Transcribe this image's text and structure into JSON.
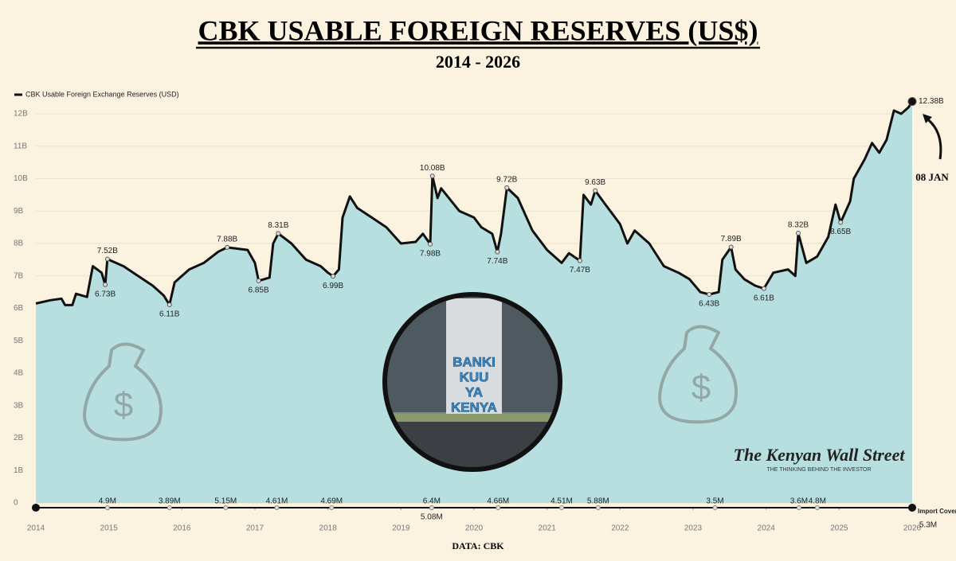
{
  "chart_data": {
    "type": "line",
    "title": "CBK USABLE FOREIGN RESERVES (US$)",
    "subtitle": "2014 - 2026",
    "source": "DATA: CBK",
    "annotation": "08 JAN",
    "watermark": "The Kenyan Wall Street",
    "watermark_tagline": "THE THINKING BEHIND THE INVESTOR",
    "image_text": [
      "BANKI",
      "KUU",
      "YA",
      "KENYA"
    ],
    "xlim": [
      2014,
      2026
    ],
    "xticks": [
      2014,
      2015,
      2016,
      2017,
      2018,
      2019,
      2020,
      2021,
      2022,
      2023,
      2024,
      2025,
      2026
    ],
    "ylim": [
      0,
      12.5
    ],
    "yticks": [
      0,
      {
        "value": 1,
        "label": "1B"
      },
      {
        "value": 2,
        "label": "2B"
      },
      {
        "value": 3,
        "label": "3B"
      },
      {
        "value": 4,
        "label": "4B"
      },
      {
        "value": 5,
        "label": "5B"
      },
      {
        "value": 6,
        "label": "6B"
      },
      {
        "value": 7,
        "label": "7B"
      },
      {
        "value": 8,
        "label": "8B"
      },
      {
        "value": 9,
        "label": "9B"
      },
      {
        "value": 10,
        "label": "10B"
      },
      {
        "value": 11,
        "label": "11B"
      },
      {
        "value": 12,
        "label": "12B"
      }
    ],
    "grid": true,
    "legend": "top-left",
    "series": [
      {
        "name": "CBK Usable Foreign Exchange Reserves (USD)",
        "color": "#111111",
        "fill": "#b8dfe0",
        "x": [
          2014.0,
          2014.2,
          2014.35,
          2014.4,
          2014.5,
          2014.55,
          2014.7,
          2014.78,
          2014.9,
          2014.95,
          2014.98,
          2015.2,
          2015.4,
          2015.6,
          2015.75,
          2015.83,
          2015.9,
          2016.0,
          2016.1,
          2016.3,
          2016.5,
          2016.62,
          2016.9,
          2017.0,
          2017.05,
          2017.2,
          2017.25,
          2017.32,
          2017.5,
          2017.7,
          2017.9,
          2018.0,
          2018.07,
          2018.15,
          2018.2,
          2018.3,
          2018.4,
          2018.6,
          2018.8,
          2019.0,
          2019.2,
          2019.3,
          2019.4,
          2019.43,
          2019.5,
          2019.55,
          2019.8,
          2020.0,
          2020.1,
          2020.25,
          2020.32,
          2020.37,
          2020.45,
          2020.6,
          2020.8,
          2021.0,
          2021.2,
          2021.3,
          2021.45,
          2021.5,
          2021.6,
          2021.66,
          2021.8,
          2022.0,
          2022.1,
          2022.2,
          2022.4,
          2022.6,
          2022.8,
          2022.95,
          2023.1,
          2023.22,
          2023.35,
          2023.4,
          2023.52,
          2023.58,
          2023.7,
          2023.85,
          2023.97,
          2024.1,
          2024.3,
          2024.4,
          2024.44,
          2024.55,
          2024.7,
          2024.85,
          2024.95,
          2025.02,
          2025.15,
          2025.2,
          2025.35,
          2025.45,
          2025.55,
          2025.65,
          2025.75,
          2025.85,
          2025.95,
          2026.0
        ],
        "values": [
          6.15,
          6.25,
          6.3,
          6.1,
          6.1,
          6.45,
          6.35,
          7.3,
          7.1,
          6.73,
          7.52,
          7.3,
          7.0,
          6.7,
          6.4,
          6.11,
          6.8,
          7.0,
          7.2,
          7.4,
          7.75,
          7.88,
          7.8,
          7.4,
          6.85,
          6.95,
          8.0,
          8.31,
          8.0,
          7.5,
          7.3,
          7.1,
          6.99,
          7.2,
          8.8,
          9.45,
          9.1,
          8.8,
          8.5,
          8.0,
          8.05,
          8.3,
          7.98,
          10.08,
          9.4,
          9.7,
          9.0,
          8.8,
          8.5,
          8.3,
          7.74,
          8.3,
          9.72,
          9.4,
          8.4,
          7.8,
          7.4,
          7.7,
          7.47,
          9.5,
          9.2,
          9.63,
          9.2,
          8.6,
          8.0,
          8.4,
          8.0,
          7.3,
          7.1,
          6.9,
          6.5,
          6.43,
          6.5,
          7.5,
          7.89,
          7.2,
          6.9,
          6.7,
          6.61,
          7.1,
          7.2,
          7.0,
          8.32,
          7.4,
          7.6,
          8.2,
          9.2,
          8.65,
          9.3,
          10.0,
          10.6,
          11.1,
          10.8,
          11.2,
          12.1,
          12.0,
          12.2,
          12.38
        ],
        "value_labels": [
          null,
          null,
          null,
          null,
          null,
          null,
          null,
          null,
          null,
          "6.73B",
          "7.52B",
          null,
          null,
          null,
          null,
          "6.11B",
          null,
          null,
          null,
          null,
          null,
          "7.88B",
          null,
          null,
          "6.85B",
          null,
          null,
          "8.31B",
          null,
          null,
          null,
          null,
          "6.99B",
          null,
          null,
          null,
          null,
          null,
          null,
          null,
          null,
          null,
          "7.98B",
          "10.08B",
          null,
          null,
          null,
          null,
          null,
          null,
          "7.74B",
          null,
          "9.72B",
          null,
          null,
          null,
          null,
          null,
          "7.47B",
          null,
          null,
          "9.63B",
          null,
          null,
          null,
          null,
          null,
          null,
          null,
          null,
          null,
          "6.43B",
          null,
          null,
          "7.89B",
          null,
          null,
          null,
          "6.61B",
          null,
          null,
          null,
          "8.32B",
          null,
          null,
          null,
          null,
          "8.65B",
          null,
          null,
          null,
          null,
          null,
          null,
          null,
          null,
          null,
          "12.38B"
        ]
      }
    ],
    "import_cover": {
      "name": "Import Cover",
      "color": "#888888",
      "x": [
        2014.98,
        2015.83,
        2016.6,
        2017.3,
        2018.05,
        2019.42,
        2019.42,
        2020.33,
        2021.2,
        2021.7,
        2023.3,
        2024.45,
        2024.7,
        2026.0
      ],
      "values": [
        4.9,
        3.89,
        5.15,
        4.61,
        4.69,
        6.4,
        5.08,
        4.66,
        4.51,
        5.88,
        3.5,
        3.6,
        4.8,
        5.3
      ],
      "value_labels": [
        "4.9M",
        "3.89M",
        "5.15M",
        "4.61M",
        "4.69M",
        "6.4M",
        "5.08M",
        "4.66M",
        "4.51M",
        "5.88M",
        "3.5M",
        "3.6M",
        "4.8M",
        "5.3M"
      ]
    }
  }
}
